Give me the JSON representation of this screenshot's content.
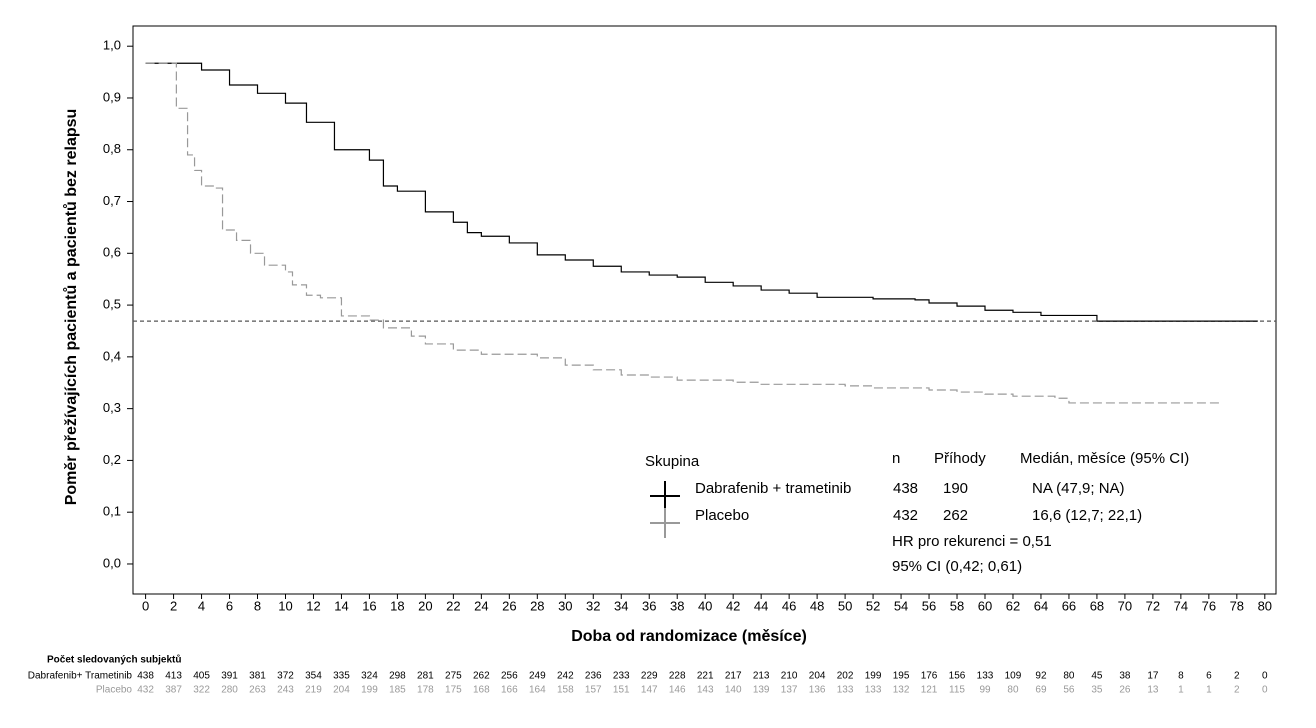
{
  "chart_data": {
    "type": "line",
    "step": true,
    "x_label": "Doba od randomizace (měsíce)",
    "y_label": "Poměr přežívajících pacientů a pacientů bez relapsu",
    "xlim": [
      -0.9,
      80.8
    ],
    "ylim": [
      -0.058,
      1.039
    ],
    "xticks": [
      0,
      2,
      4,
      6,
      8,
      10,
      12,
      14,
      16,
      18,
      20,
      22,
      24,
      26,
      28,
      30,
      32,
      34,
      36,
      38,
      40,
      42,
      44,
      46,
      48,
      50,
      52,
      54,
      56,
      58,
      60,
      62,
      64,
      66,
      68,
      70,
      72,
      74,
      76,
      78,
      80
    ],
    "yticks": [
      {
        "value": 0,
        "label": "0,0"
      },
      {
        "value": 0.1,
        "label": "0,1"
      },
      {
        "value": 0.2,
        "label": "0,2"
      },
      {
        "value": 0.3,
        "label": "0,3"
      },
      {
        "value": 0.4,
        "label": "0,4"
      },
      {
        "value": 0.5,
        "label": "0,5"
      },
      {
        "value": 0.6,
        "label": "0,6"
      },
      {
        "value": 0.7,
        "label": "0,7"
      },
      {
        "value": 0.8,
        "label": "0,8"
      },
      {
        "value": 0.9,
        "label": "0,9"
      },
      {
        "value": 1,
        "label": "1,0"
      }
    ],
    "reference_line": 0.469,
    "legend": {
      "title": "Skupina",
      "columns": [
        "n",
        "Příhody",
        "Medián, měsíce (95% CI)"
      ]
    },
    "series": [
      {
        "name": "Dabrafenib + trametinib",
        "color": "#000000",
        "dashed": false,
        "n": 438,
        "events": 190,
        "median": "NA (47,9; NA)",
        "x": [
          0,
          4,
          6,
          8,
          10,
          11.5,
          13.5,
          16,
          17,
          18,
          20,
          22,
          23,
          24,
          26,
          28,
          30,
          32,
          34,
          36,
          38,
          40,
          42,
          44,
          46,
          48,
          52,
          55,
          56,
          58,
          60,
          62,
          64,
          68,
          79.5
        ],
        "values": [
          0.967,
          0.954,
          0.925,
          0.909,
          0.89,
          0.853,
          0.8,
          0.78,
          0.73,
          0.72,
          0.68,
          0.66,
          0.64,
          0.633,
          0.62,
          0.597,
          0.587,
          0.575,
          0.564,
          0.558,
          0.554,
          0.544,
          0.537,
          0.529,
          0.523,
          0.515,
          0.512,
          0.51,
          0.504,
          0.498,
          0.49,
          0.486,
          0.48,
          0.469,
          0.469
        ]
      },
      {
        "name": "Placebo",
        "color": "#999999",
        "dashed": true,
        "n": 432,
        "events": 262,
        "median": "16,6 (12,7; 22,1)",
        "x": [
          0,
          2.2,
          3,
          3.5,
          4,
          5,
          5.5,
          6.5,
          7.5,
          8.5,
          10,
          10.5,
          11.5,
          12.5,
          14,
          16,
          17,
          19,
          20,
          22,
          24,
          28,
          30,
          32,
          34,
          36,
          38,
          42,
          44,
          50,
          52,
          56,
          58,
          60,
          62,
          65,
          66,
          77
        ],
        "values": [
          0.967,
          0.88,
          0.79,
          0.76,
          0.73,
          0.726,
          0.645,
          0.625,
          0.6,
          0.577,
          0.564,
          0.539,
          0.519,
          0.514,
          0.479,
          0.471,
          0.456,
          0.44,
          0.425,
          0.413,
          0.405,
          0.398,
          0.384,
          0.375,
          0.365,
          0.361,
          0.355,
          0.351,
          0.347,
          0.344,
          0.34,
          0.336,
          0.332,
          0.328,
          0.324,
          0.32,
          0.311,
          0.311
        ]
      }
    ],
    "annotations": [
      "HR pro rekurenci = 0,51",
      "95% CI (0,42; 0,61)"
    ],
    "risk_table": {
      "title": "Počet sledovaných subjektů",
      "rows": [
        {
          "label": "Dabrafenib+ Trametinib",
          "values": [
            438,
            413,
            405,
            391,
            381,
            372,
            354,
            335,
            324,
            298,
            281,
            275,
            262,
            256,
            249,
            242,
            236,
            233,
            229,
            228,
            221,
            217,
            213,
            210,
            204,
            202,
            199,
            195,
            176,
            156,
            133,
            109,
            92,
            80,
            45,
            38,
            17,
            8,
            6,
            2,
            0
          ]
        },
        {
          "label": "Placebo",
          "values": [
            432,
            387,
            322,
            280,
            263,
            243,
            219,
            204,
            199,
            185,
            178,
            175,
            168,
            166,
            164,
            158,
            157,
            151,
            147,
            146,
            143,
            140,
            139,
            137,
            136,
            133,
            133,
            132,
            121,
            115,
            99,
            80,
            69,
            56,
            35,
            26,
            13,
            1,
            1,
            2,
            0
          ]
        }
      ]
    }
  }
}
